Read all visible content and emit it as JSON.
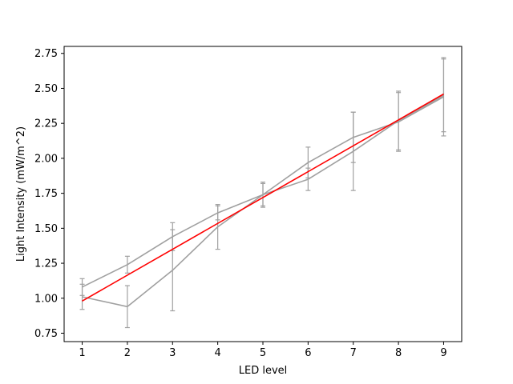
{
  "chart_data": {
    "type": "line",
    "xlabel": "LED level",
    "ylabel": "Light Intensity (mW/m^2)",
    "xlim": [
      0.6,
      9.4
    ],
    "ylim": [
      0.69,
      2.8
    ],
    "x_ticks": [
      1,
      2,
      3,
      4,
      5,
      6,
      7,
      8,
      9
    ],
    "x_tick_labels": [
      "1",
      "2",
      "3",
      "4",
      "5",
      "6",
      "7",
      "8",
      "9"
    ],
    "y_ticks": [
      0.75,
      1.0,
      1.25,
      1.5,
      1.75,
      2.0,
      2.25,
      2.5,
      2.75
    ],
    "y_tick_labels": [
      "0.75",
      "1.00",
      "1.25",
      "1.50",
      "1.75",
      "2.00",
      "2.25",
      "2.50",
      "2.75"
    ],
    "grid": false,
    "series": [
      {
        "color": "#a0a0a0",
        "x": [
          1,
          2,
          3,
          4,
          5,
          6,
          7,
          8,
          9
        ],
        "y": [
          1.08,
          1.24,
          1.44,
          1.61,
          1.74,
          1.97,
          2.15,
          2.26,
          2.44
        ],
        "err": [
          0.06,
          0.06,
          0.1,
          0.05,
          0.08,
          0.11,
          0.18,
          0.21,
          0.28
        ]
      },
      {
        "color": "#a0a0a0",
        "x": [
          1,
          2,
          3,
          4,
          5,
          6,
          7,
          8,
          9
        ],
        "y": [
          1.01,
          0.94,
          1.2,
          1.51,
          1.74,
          1.85,
          2.05,
          2.27,
          2.45
        ],
        "err": [
          0.09,
          0.15,
          0.29,
          0.16,
          0.09,
          0.08,
          0.28,
          0.21,
          0.26
        ]
      },
      {
        "color": "#ff0000",
        "x": [
          1,
          9
        ],
        "y": [
          0.98,
          2.46
        ],
        "err": null
      }
    ]
  }
}
